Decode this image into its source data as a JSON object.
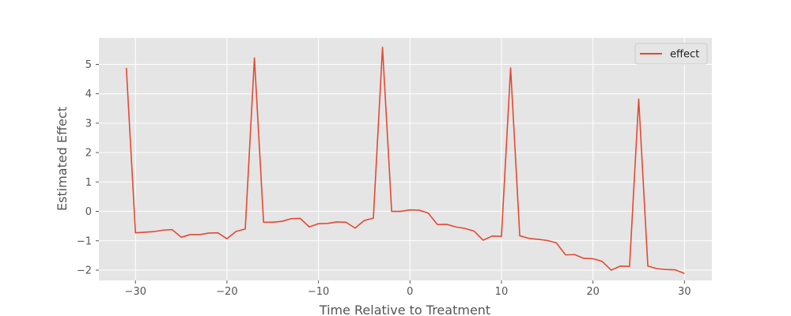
{
  "chart_data": {
    "type": "line",
    "title": "",
    "xlabel": "Time Relative to Treatment",
    "ylabel": "Estimated Effect",
    "xlim": [
      -34,
      33
    ],
    "ylim": [
      -2.35,
      5.9
    ],
    "xticks": [
      -30,
      -20,
      -10,
      0,
      10,
      20,
      30
    ],
    "yticks": [
      -2,
      -1,
      0,
      1,
      2,
      3,
      4,
      5
    ],
    "xtick_labels": [
      "−30",
      "−20",
      "−10",
      "0",
      "10",
      "20",
      "30"
    ],
    "ytick_labels": [
      "−2",
      "−1",
      "0",
      "1",
      "2",
      "3",
      "4",
      "5"
    ],
    "grid": true,
    "legend_position": "top-right",
    "series": [
      {
        "name": "effect",
        "color": "#E24A33",
        "x": [
          -31,
          -30,
          -29,
          -28,
          -27,
          -26,
          -25,
          -24,
          -23,
          -22,
          -21,
          -20,
          -19,
          -18,
          -17,
          -16,
          -15,
          -14,
          -13,
          -12,
          -11,
          -10,
          -9,
          -8,
          -7,
          -6,
          -5,
          -4,
          -3,
          -2,
          -1,
          0,
          1,
          2,
          3,
          4,
          5,
          6,
          7,
          8,
          9,
          10,
          11,
          12,
          13,
          14,
          15,
          16,
          17,
          18,
          19,
          20,
          21,
          22,
          23,
          24,
          25,
          26,
          27,
          28,
          29,
          30
        ],
        "y": [
          4.88,
          -0.73,
          -0.71,
          -0.69,
          -0.64,
          -0.62,
          -0.88,
          -0.79,
          -0.79,
          -0.74,
          -0.73,
          -0.93,
          -0.68,
          -0.6,
          5.22,
          -0.37,
          -0.37,
          -0.34,
          -0.25,
          -0.24,
          -0.53,
          -0.42,
          -0.41,
          -0.36,
          -0.37,
          -0.57,
          -0.31,
          -0.23,
          5.58,
          0.0,
          0.0,
          0.05,
          0.04,
          -0.06,
          -0.45,
          -0.44,
          -0.53,
          -0.58,
          -0.67,
          -0.98,
          -0.84,
          -0.85,
          4.88,
          -0.83,
          -0.92,
          -0.95,
          -0.99,
          -1.07,
          -1.48,
          -1.47,
          -1.6,
          -1.61,
          -1.7,
          -2.0,
          -1.86,
          -1.87,
          3.82,
          -1.86,
          -1.95,
          -1.98,
          -1.99,
          -2.11
        ]
      }
    ]
  }
}
